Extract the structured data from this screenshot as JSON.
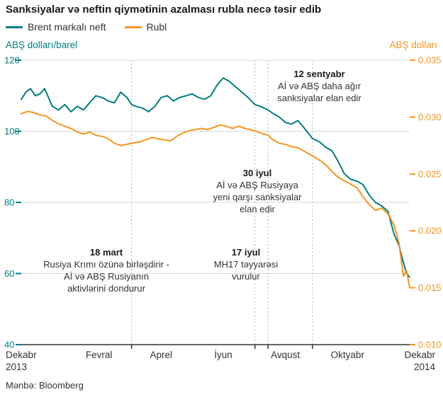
{
  "title": "Sanksiyalar və neftin qiymətinin azalması rubla necə təsir edib",
  "legend": [
    {
      "label": "Brent markalı neft",
      "color": "#007d80"
    },
    {
      "label": "Rubl",
      "color": "#f7941d"
    }
  ],
  "source": "Mənbə: Bloomberg",
  "chart_data": {
    "type": "line",
    "title": "Sanksiyalar və neftin qiymətinin azalması rubla necə təsir edib",
    "x_unit": "months since 1 Dec 2013",
    "x_range": [
      0,
      12.5
    ],
    "grid": true,
    "left_axis": {
      "label": "ABŞ dolları/barel",
      "min": 40,
      "max": 120,
      "ticks": [
        40,
        60,
        80,
        100,
        120
      ],
      "color": "#007d80"
    },
    "right_axis": {
      "label": "ABŞ dolları",
      "min": 0.01,
      "max": 0.035,
      "ticks": [
        "0.010",
        "0.015",
        "0.020",
        "0.025",
        "0.030",
        "0.035"
      ],
      "color": "#f7941d"
    },
    "x_ticks": [
      {
        "label": "Dekabr",
        "sub": "2013",
        "month": 0.5,
        "anchor": "start"
      },
      {
        "label": "Fevral",
        "month": 2.5,
        "anchor": "middle"
      },
      {
        "label": "Aprel",
        "month": 4.5,
        "anchor": "middle"
      },
      {
        "label": "İyun",
        "month": 6.5,
        "anchor": "middle"
      },
      {
        "label": "Avqust",
        "month": 8.5,
        "anchor": "middle"
      },
      {
        "label": "Oktyabr",
        "month": 10.5,
        "anchor": "middle"
      },
      {
        "label": "Dekabr",
        "sub": "2014",
        "month": 12.2,
        "anchor": "end"
      }
    ],
    "events": [
      {
        "name": "18 mart",
        "month": 3.55
      },
      {
        "name": "17 iyul",
        "month": 7.52
      },
      {
        "name": "30 iyul",
        "month": 7.94
      },
      {
        "name": "12 sentyabr",
        "month": 9.37
      }
    ],
    "series": [
      {
        "name": "Brent markalı neft",
        "axis": "left",
        "color": "#007d80",
        "points": [
          [
            0,
            109
          ],
          [
            0.15,
            111
          ],
          [
            0.3,
            112
          ],
          [
            0.45,
            110
          ],
          [
            0.6,
            110.5
          ],
          [
            0.75,
            112
          ],
          [
            0.9,
            109
          ],
          [
            1.0,
            107
          ],
          [
            1.2,
            106
          ],
          [
            1.4,
            107.5
          ],
          [
            1.6,
            105.5
          ],
          [
            1.8,
            107
          ],
          [
            2.0,
            106
          ],
          [
            2.2,
            108
          ],
          [
            2.4,
            110
          ],
          [
            2.6,
            109.5
          ],
          [
            2.8,
            108.5
          ],
          [
            3.0,
            108
          ],
          [
            3.2,
            111
          ],
          [
            3.4,
            109.5
          ],
          [
            3.55,
            107.5
          ],
          [
            3.7,
            107
          ],
          [
            3.9,
            106.5
          ],
          [
            4.1,
            105.5
          ],
          [
            4.3,
            107
          ],
          [
            4.5,
            109.5
          ],
          [
            4.7,
            110
          ],
          [
            4.9,
            108.5
          ],
          [
            5.1,
            109.5
          ],
          [
            5.3,
            110
          ],
          [
            5.5,
            110.5
          ],
          [
            5.7,
            109.5
          ],
          [
            5.9,
            109
          ],
          [
            6.1,
            110
          ],
          [
            6.3,
            113
          ],
          [
            6.5,
            115
          ],
          [
            6.7,
            114
          ],
          [
            6.9,
            112.5
          ],
          [
            7.1,
            111
          ],
          [
            7.3,
            109.5
          ],
          [
            7.52,
            107.5
          ],
          [
            7.7,
            107
          ],
          [
            7.94,
            106
          ],
          [
            8.1,
            105
          ],
          [
            8.3,
            104
          ],
          [
            8.5,
            102.5
          ],
          [
            8.7,
            102
          ],
          [
            8.9,
            103
          ],
          [
            9.1,
            101
          ],
          [
            9.37,
            98
          ],
          [
            9.6,
            97
          ],
          [
            9.8,
            95.5
          ],
          [
            10.0,
            94.5
          ],
          [
            10.2,
            91.5
          ],
          [
            10.4,
            88
          ],
          [
            10.6,
            86.5
          ],
          [
            10.8,
            86
          ],
          [
            11.0,
            85
          ],
          [
            11.2,
            82
          ],
          [
            11.4,
            80
          ],
          [
            11.6,
            79
          ],
          [
            11.8,
            77.5
          ],
          [
            12.0,
            71
          ],
          [
            12.15,
            68
          ],
          [
            12.3,
            63
          ],
          [
            12.4,
            60
          ],
          [
            12.5,
            59
          ]
        ]
      },
      {
        "name": "Rubl",
        "axis": "right",
        "color": "#f7941d",
        "points": [
          [
            0,
            0.0303
          ],
          [
            0.2,
            0.0305
          ],
          [
            0.4,
            0.0304
          ],
          [
            0.6,
            0.0302
          ],
          [
            0.8,
            0.0301
          ],
          [
            1.0,
            0.0297
          ],
          [
            1.2,
            0.0294
          ],
          [
            1.4,
            0.0292
          ],
          [
            1.6,
            0.029
          ],
          [
            1.8,
            0.0287
          ],
          [
            2.0,
            0.0285
          ],
          [
            2.2,
            0.0287
          ],
          [
            2.4,
            0.0284
          ],
          [
            2.6,
            0.0283
          ],
          [
            2.8,
            0.0281
          ],
          [
            3.0,
            0.0277
          ],
          [
            3.2,
            0.0275
          ],
          [
            3.4,
            0.0276
          ],
          [
            3.55,
            0.0277
          ],
          [
            3.8,
            0.0278
          ],
          [
            4.0,
            0.028
          ],
          [
            4.2,
            0.0282
          ],
          [
            4.4,
            0.0281
          ],
          [
            4.6,
            0.028
          ],
          [
            4.8,
            0.0279
          ],
          [
            5.0,
            0.0283
          ],
          [
            5.2,
            0.0286
          ],
          [
            5.4,
            0.0288
          ],
          [
            5.6,
            0.0289
          ],
          [
            5.8,
            0.029
          ],
          [
            6.0,
            0.0289
          ],
          [
            6.2,
            0.0291
          ],
          [
            6.4,
            0.0293
          ],
          [
            6.6,
            0.0292
          ],
          [
            6.8,
            0.029
          ],
          [
            7.0,
            0.0292
          ],
          [
            7.2,
            0.029
          ],
          [
            7.52,
            0.0288
          ],
          [
            7.7,
            0.0286
          ],
          [
            7.94,
            0.0284
          ],
          [
            8.1,
            0.028
          ],
          [
            8.3,
            0.0277
          ],
          [
            8.5,
            0.0276
          ],
          [
            8.7,
            0.0274
          ],
          [
            8.9,
            0.0273
          ],
          [
            9.1,
            0.027
          ],
          [
            9.37,
            0.0266
          ],
          [
            9.6,
            0.0262
          ],
          [
            9.8,
            0.0258
          ],
          [
            10.0,
            0.0252
          ],
          [
            10.2,
            0.0247
          ],
          [
            10.4,
            0.0244
          ],
          [
            10.6,
            0.0241
          ],
          [
            10.8,
            0.0238
          ],
          [
            11.0,
            0.023
          ],
          [
            11.2,
            0.0223
          ],
          [
            11.4,
            0.0218
          ],
          [
            11.6,
            0.022
          ],
          [
            11.8,
            0.0215
          ],
          [
            12.0,
            0.0205
          ],
          [
            12.15,
            0.019
          ],
          [
            12.3,
            0.016
          ],
          [
            12.4,
            0.0165
          ],
          [
            12.5,
            0.015
          ]
        ]
      }
    ],
    "annotations": [
      {
        "title": "12 sentyabr",
        "lines": [
          "Aİ və ABŞ daha ağır",
          "sanksiyalar elan edir"
        ]
      },
      {
        "title": "30 iyul",
        "lines": [
          "Aİ və ABŞ Rusiyaya",
          "yeni qarşı sanksiyalar",
          "elan edir"
        ]
      },
      {
        "title": "18 mart",
        "lines": [
          "Rusiya Krımı özünə birləşdirir -",
          "Aİ və ABŞ Rusiyanın",
          "aktivlərini dondurur"
        ]
      },
      {
        "title": "17 iyul",
        "lines": [
          "MH17 təyyarəsi",
          "vurulur"
        ]
      }
    ]
  }
}
